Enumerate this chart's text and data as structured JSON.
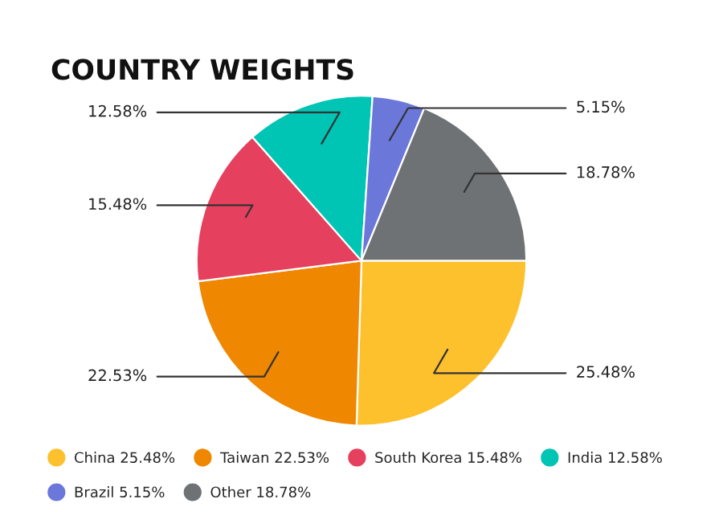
{
  "chart_data": {
    "type": "pie",
    "title": "COUNTRY WEIGHTS",
    "categories": [
      "China",
      "Taiwan",
      "South Korea",
      "India",
      "Brazil",
      "Other"
    ],
    "values": [
      25.48,
      22.53,
      15.48,
      12.58,
      5.15,
      18.78
    ],
    "value_labels": [
      "25.48%",
      "22.53%",
      "15.48%",
      "12.58%",
      "5.15%",
      "18.78%"
    ],
    "colors": [
      "#fdc12e",
      "#ef8700",
      "#e5405e",
      "#00c4b4",
      "#6c78d9",
      "#6e7274"
    ],
    "legend": "bottom"
  }
}
